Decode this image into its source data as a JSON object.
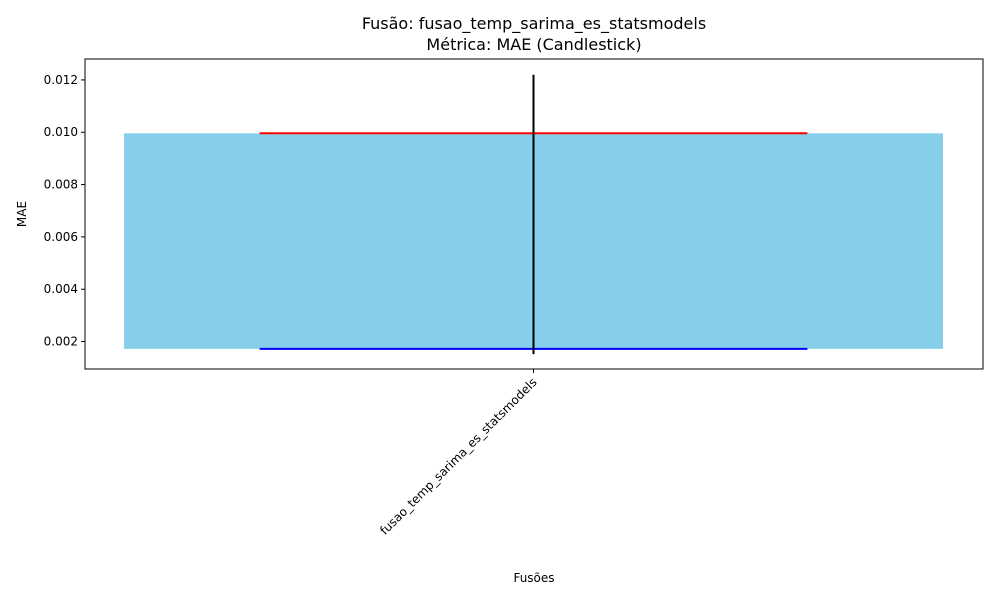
{
  "chart_data": {
    "type": "candlestick",
    "title": "Fusão: fusao_temp_sarima_es_statsmodels",
    "subtitle": "Métrica: MAE (Candlestick)",
    "xlabel": "Fusões",
    "ylabel": "MAE",
    "categories": [
      "fusao_temp_sarima_es_statsmodels"
    ],
    "candles": [
      {
        "category": "fusao_temp_sarima_es_statsmodels",
        "open": 0.00172,
        "close": 0.00996,
        "high": 0.0122,
        "low": 0.00152
      }
    ],
    "ylim": [
      0.00095,
      0.0128
    ],
    "yticks": [
      0.002,
      0.004,
      0.006,
      0.008,
      0.01,
      0.012
    ],
    "ytick_labels": [
      "0.002",
      "0.004",
      "0.006",
      "0.008",
      "0.010",
      "0.012"
    ],
    "grid": false,
    "colors": {
      "body": "#87ceeb",
      "wick": "#000000",
      "close_line": "#ff0000",
      "open_line": "#0000ff"
    }
  }
}
